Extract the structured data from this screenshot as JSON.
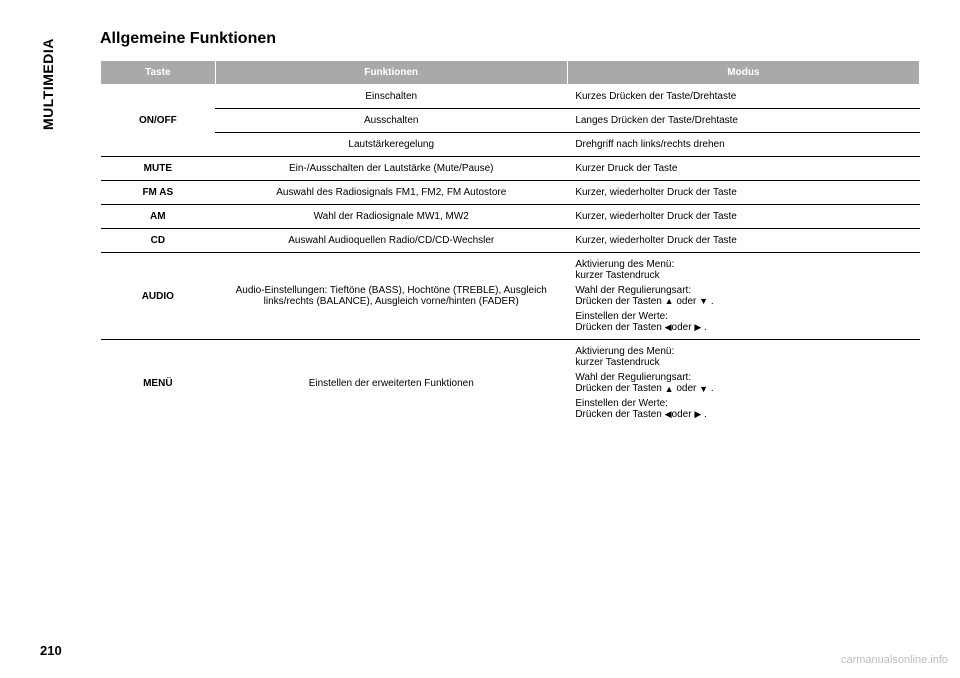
{
  "sidebar": {
    "label": "MULTIMEDIA"
  },
  "section_title": "Allgemeine Funktionen",
  "table": {
    "headers": {
      "taste": "Taste",
      "funktionen": "Funktionen",
      "modus": "Modus"
    },
    "rows": {
      "onoff": {
        "taste": "ON/OFF",
        "sub": [
          {
            "funk": "Einschalten",
            "modus": "Kurzes Drücken der Taste/Drehtaste"
          },
          {
            "funk": "Ausschalten",
            "modus": "Langes Drücken der Taste/Drehtaste"
          },
          {
            "funk": "Lautstärkeregelung",
            "modus": "Drehgriff nach links/rechts drehen"
          }
        ]
      },
      "mute": {
        "taste": "MUTE",
        "funk": "Ein-/Ausschalten der Lautstärke (Mute/Pause)",
        "modus": "Kurzer Druck der Taste"
      },
      "fmas": {
        "taste": "FM AS",
        "funk": "Auswahl des Radiosignals FM1, FM2, FM Autostore",
        "modus": "Kurzer, wiederholter Druck der Taste"
      },
      "am": {
        "taste": "AM",
        "funk": "Wahl der Radiosignale MW1, MW2",
        "modus": "Kurzer, wiederholter Druck der Taste"
      },
      "cd": {
        "taste": "CD",
        "funk": "Auswahl Audioquellen Radio/CD/CD-Wechsler",
        "modus": "Kurzer, wiederholter Druck der Taste"
      },
      "audio": {
        "taste": "AUDIO",
        "funk": "Audio-Einstellungen: Tieftöne (BASS), Hochtöne (TREBLE), Ausgleich links/rechts (BALANCE), Ausgleich vorne/hinten (FADER)",
        "modus": {
          "l1": "Aktivierung des Menü:",
          "l2": "kurzer Tastendruck",
          "l3": "Wahl der Regulierungsart:",
          "l4a": "Drücken der Tasten ",
          "l4b": " oder ",
          "l4c": " .",
          "l5": "Einstellen der Werte:",
          "l6a": "Drücken der Tasten ",
          "l6b": "oder ",
          "l6c": " ."
        }
      },
      "menu": {
        "taste": "MENÜ",
        "funk": "Einstellen der erweiterten Funktionen",
        "modus": {
          "l1": "Aktivierung des Menü:",
          "l2": "kurzer Tastendruck",
          "l3": "Wahl der Regulierungsart:",
          "l4a": "Drücken der Tasten ",
          "l4b": " oder ",
          "l4c": " .",
          "l5": "Einstellen der Werte:",
          "l6a": "Drücken der Tasten ",
          "l6b": "oder ",
          "l6c": " ."
        }
      }
    }
  },
  "page_number": "210",
  "watermark": "carmanualsonline.info",
  "glyphs": {
    "up": "▲",
    "down": "▼",
    "left": "◀",
    "right": "▶"
  }
}
